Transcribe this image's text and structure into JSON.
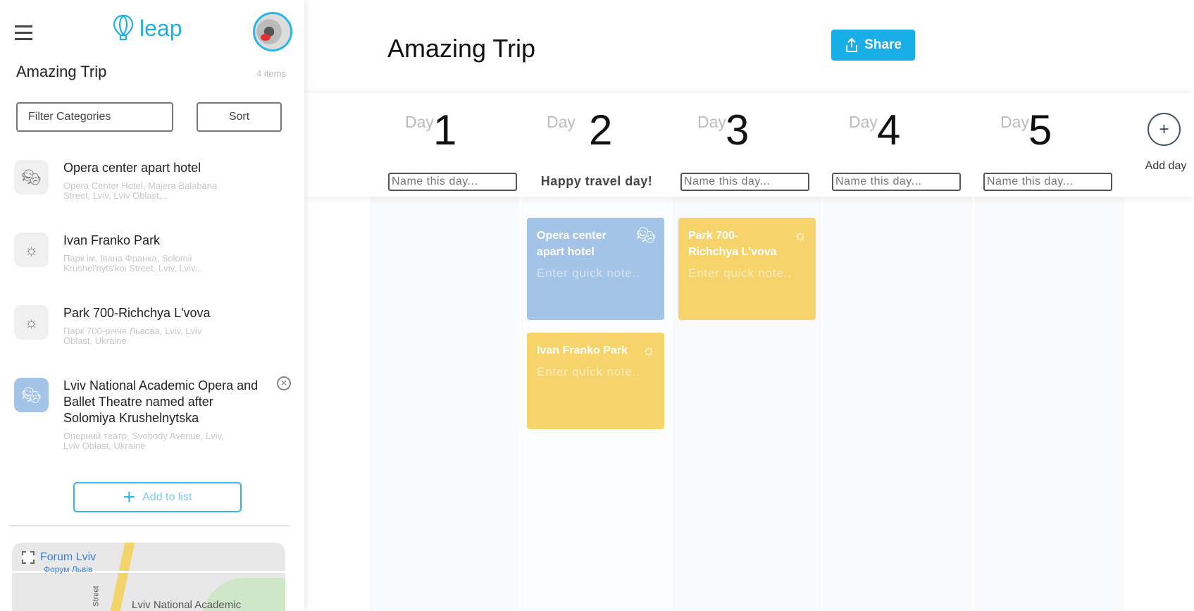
{
  "sidebar": {
    "logo": "leap",
    "title": "Amazing Trip",
    "count": "4 items",
    "filter_label": "Filter Categories",
    "sort_label": "Sort",
    "items": [
      {
        "title": "Opera center apart hotel",
        "subtitle": "Opera Center Hotel, Majera Balabana Street, Lviv, Lviv Oblast,...",
        "icon": "theater-masks-icon"
      },
      {
        "title": "Ivan Franko Park",
        "subtitle": "Парк ім. Івана Франка, Solomii Krushel'nyts'koi Street, Lviv, Lviv...",
        "icon": "sun-icon"
      },
      {
        "title": "Park 700-Richchya L'vova",
        "subtitle": "Парк 700-річчя Львова, Lviv, Lviv Oblast, Ukraine",
        "icon": "sun-icon"
      },
      {
        "title": "Lviv National Academic Opera and Ballet Theatre named after Solomiya Krushelnytska",
        "subtitle": "Оперний театр, Svobody Avenue, Lviv, Lviv Oblast, Ukraine",
        "icon": "theater-masks-icon"
      }
    ],
    "add_label": "Add to list",
    "map": {
      "label1": "Forum Lviv",
      "label2": "Форум Львів",
      "label3": "Lviv National Academic",
      "street": "Street"
    }
  },
  "main": {
    "title": "Amazing Trip",
    "share_label": "Share",
    "day_word": "Day",
    "day_placeholder": "Name this day...",
    "days": [
      {
        "number": "1",
        "name": ""
      },
      {
        "number": "2",
        "name": "Happy travel day!"
      },
      {
        "number": "3",
        "name": ""
      },
      {
        "number": "4",
        "name": ""
      },
      {
        "number": "5",
        "name": ""
      }
    ],
    "add_day_label": "Add day",
    "note_placeholder": "Enter quick note..",
    "cards": [
      {
        "day": 2,
        "title": "Opera center apart hotel",
        "icon": "theater-masks-icon",
        "color": "#a3c4e6"
      },
      {
        "day": 2,
        "title": "Ivan Franko Park",
        "icon": "sun-icon",
        "color": "#f6d36b"
      },
      {
        "day": 3,
        "title": "Park 700-Richchya L'vova",
        "icon": "sun-icon",
        "color": "#f6d36b"
      }
    ]
  },
  "colors": {
    "accent": "#1aaee8",
    "blue_card": "#a3c4e6",
    "yellow_card": "#f6d36b"
  }
}
